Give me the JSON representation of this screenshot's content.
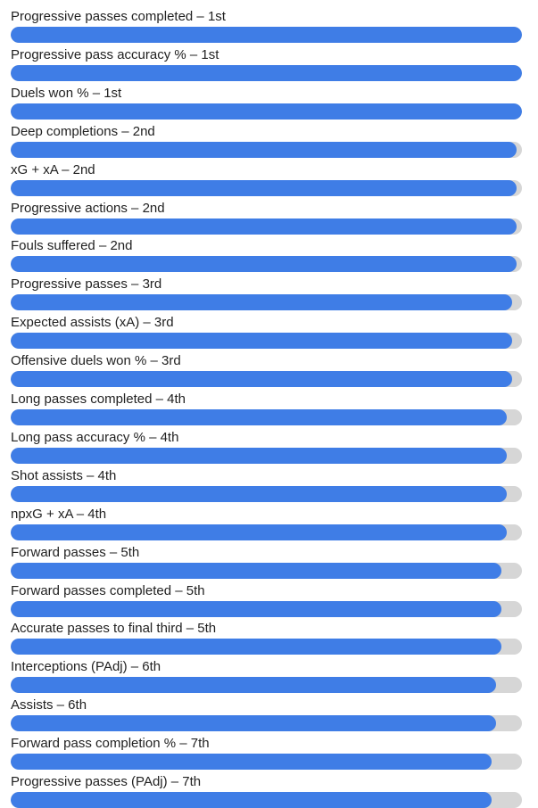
{
  "chart_data": {
    "type": "bar",
    "orientation": "horizontal",
    "max": 1,
    "colors": {
      "fill": "#3f7de6",
      "track": "#d6d6d6",
      "text": "#222222"
    },
    "bars": [
      {
        "label": "Progressive passes completed – 1st",
        "value": 1.0
      },
      {
        "label": "Progressive pass accuracy % – 1st",
        "value": 1.0
      },
      {
        "label": "Duels won % – 1st",
        "value": 1.0
      },
      {
        "label": "Deep completions – 2nd",
        "value": 0.99
      },
      {
        "label": "xG + xA – 2nd",
        "value": 0.99
      },
      {
        "label": "Progressive actions – 2nd",
        "value": 0.99
      },
      {
        "label": "Fouls suffered – 2nd",
        "value": 0.99
      },
      {
        "label": "Progressive passes – 3rd",
        "value": 0.98
      },
      {
        "label": "Expected assists (xA) – 3rd",
        "value": 0.98
      },
      {
        "label": "Offensive duels won % – 3rd",
        "value": 0.98
      },
      {
        "label": "Long passes completed – 4th",
        "value": 0.97
      },
      {
        "label": "Long pass accuracy % – 4th",
        "value": 0.97
      },
      {
        "label": "Shot assists – 4th",
        "value": 0.97
      },
      {
        "label": "npxG + xA – 4th",
        "value": 0.97
      },
      {
        "label": "Forward passes – 5th",
        "value": 0.96
      },
      {
        "label": "Forward passes completed – 5th",
        "value": 0.96
      },
      {
        "label": "Accurate passes to final third – 5th",
        "value": 0.96
      },
      {
        "label": "Interceptions (PAdj) – 6th",
        "value": 0.95
      },
      {
        "label": "Assists – 6th",
        "value": 0.95
      },
      {
        "label": "Forward pass completion % – 7th",
        "value": 0.94
      },
      {
        "label": "Progressive passes (PAdj) – 7th",
        "value": 0.94
      }
    ]
  }
}
